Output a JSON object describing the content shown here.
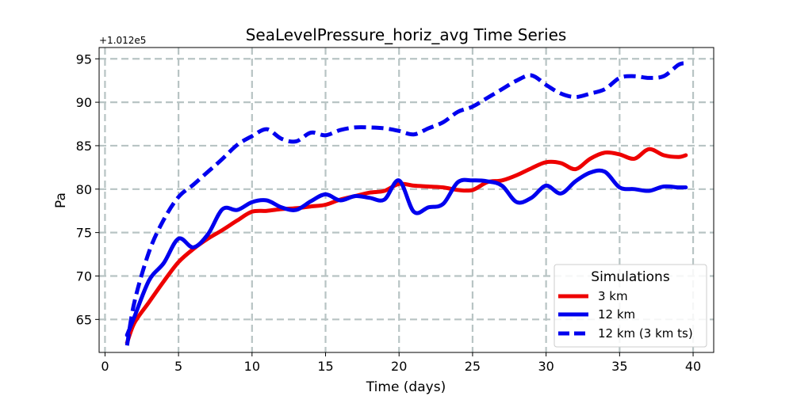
{
  "chart_data": {
    "type": "line",
    "title": "SeaLevelPressure_horiz_avg Time Series",
    "xlabel": "Time (days)",
    "ylabel": "Pa",
    "y_offset_label": "+1.012e5",
    "xlim": [
      -0.4,
      41.4
    ],
    "ylim": [
      61.2,
      96.3
    ],
    "x_ticks": [
      0,
      5,
      10,
      15,
      20,
      25,
      30,
      35,
      40
    ],
    "y_ticks": [
      65,
      70,
      75,
      80,
      85,
      90,
      95
    ],
    "grid": true,
    "legend": {
      "title": "Simulations",
      "position": "lower-right"
    },
    "series": [
      {
        "name": "3 km",
        "color": "#ee0000",
        "style": "solid",
        "x": [
          1.5,
          2,
          3,
          4,
          5,
          6,
          7,
          8,
          9,
          10,
          11,
          12,
          13,
          14,
          15,
          16,
          17,
          18,
          19,
          20,
          21,
          22,
          23,
          24,
          25,
          26,
          27,
          28,
          29,
          30,
          31,
          32,
          33,
          34,
          35,
          36,
          37,
          38,
          39,
          39.5
        ],
        "values": [
          62.3,
          64.6,
          67.0,
          69.4,
          71.6,
          73.1,
          74.3,
          75.3,
          76.4,
          77.4,
          77.5,
          77.7,
          77.8,
          78.0,
          78.2,
          78.8,
          79.2,
          79.6,
          79.8,
          80.6,
          80.4,
          80.3,
          80.2,
          79.9,
          79.9,
          80.8,
          81.0,
          81.6,
          82.4,
          83.1,
          83.0,
          82.3,
          83.5,
          84.2,
          84.0,
          83.5,
          84.6,
          83.9,
          83.7,
          83.9
        ]
      },
      {
        "name": "12 km",
        "color": "#0000ee",
        "style": "solid",
        "x": [
          1.5,
          2,
          3,
          4,
          5,
          6,
          7,
          8,
          9,
          10,
          11,
          12,
          13,
          14,
          15,
          16,
          17,
          18,
          19,
          20,
          21,
          22,
          23,
          24,
          25,
          26,
          27,
          28,
          29,
          30,
          31,
          32,
          33,
          34,
          35,
          36,
          37,
          38,
          39,
          39.5
        ],
        "values": [
          63.2,
          65.3,
          69.5,
          71.5,
          74.3,
          73.3,
          74.8,
          77.7,
          77.6,
          78.5,
          78.7,
          77.9,
          77.6,
          78.6,
          79.4,
          78.7,
          79.2,
          79.0,
          78.8,
          81.0,
          77.4,
          77.9,
          78.3,
          80.8,
          81.0,
          80.9,
          80.4,
          78.5,
          79.0,
          80.4,
          79.5,
          80.9,
          81.9,
          82.0,
          80.2,
          80.0,
          79.8,
          80.3,
          80.2,
          80.2
        ]
      },
      {
        "name": "12 km (3 km ts)",
        "color": "#0000ee",
        "style": "dashed",
        "x": [
          1.5,
          2,
          3,
          4,
          5,
          6,
          7,
          8,
          9,
          10,
          11,
          12,
          13,
          14,
          15,
          16,
          17,
          18,
          19,
          20,
          21,
          22,
          23,
          24,
          25,
          26,
          27,
          28,
          29,
          30,
          31,
          32,
          33,
          34,
          35,
          36,
          37,
          38,
          39,
          39.5
        ],
        "values": [
          62.0,
          67.0,
          72.8,
          76.5,
          79.1,
          80.5,
          82.0,
          83.5,
          85.1,
          86.1,
          86.9,
          85.8,
          85.5,
          86.5,
          86.2,
          86.8,
          87.1,
          87.1,
          87.0,
          86.7,
          86.3,
          87.0,
          87.7,
          88.9,
          89.5,
          90.5,
          91.5,
          92.5,
          93.1,
          92.0,
          91.0,
          90.6,
          91.0,
          91.5,
          92.8,
          93.0,
          92.8,
          93.0,
          94.3,
          94.5
        ]
      }
    ]
  }
}
